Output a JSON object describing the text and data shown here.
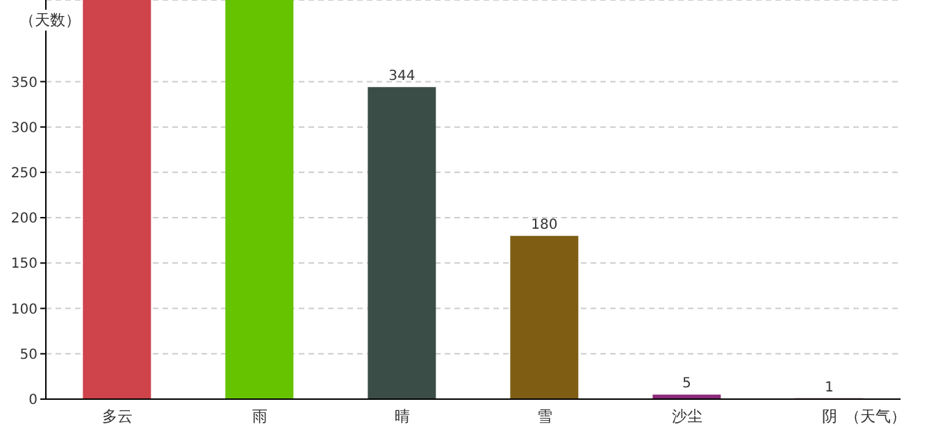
{
  "chart_data": {
    "type": "bar",
    "ylabel": "（天数）",
    "xlabel": "（天气）",
    "categories": [
      "多云",
      "雨",
      "晴",
      "雪",
      "沙尘",
      "阴"
    ],
    "values": [
      440,
      440,
      344,
      180,
      5,
      1
    ],
    "colors": [
      "#cf434b",
      "#66c300",
      "#3b4d47",
      "#7f5e14",
      "#8b2a7a",
      "#8b1a1a"
    ],
    "value_labels": [
      null,
      null,
      "344",
      "180",
      "5",
      "1"
    ],
    "ylim": [
      0,
      440
    ],
    "yticks": [
      0,
      50,
      100,
      150,
      200,
      250,
      300,
      350
    ],
    "grid": "y"
  }
}
